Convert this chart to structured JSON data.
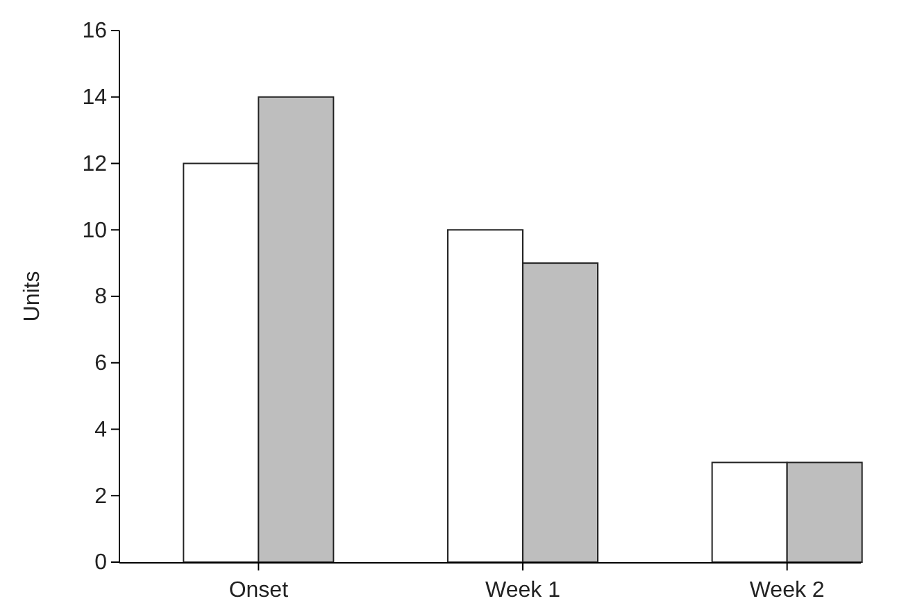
{
  "chart_data": {
    "type": "bar",
    "ylabel": "Units",
    "categories": [
      "Onset",
      "Week 1",
      "Week 2"
    ],
    "series": [
      {
        "color": "#ffffff",
        "values": [
          12,
          10,
          3
        ]
      },
      {
        "color": "#bebebe",
        "values": [
          14,
          9,
          3
        ]
      }
    ],
    "ylim": [
      0,
      16
    ],
    "yticks": [
      0,
      2,
      4,
      6,
      8,
      10,
      12,
      14,
      16
    ]
  }
}
